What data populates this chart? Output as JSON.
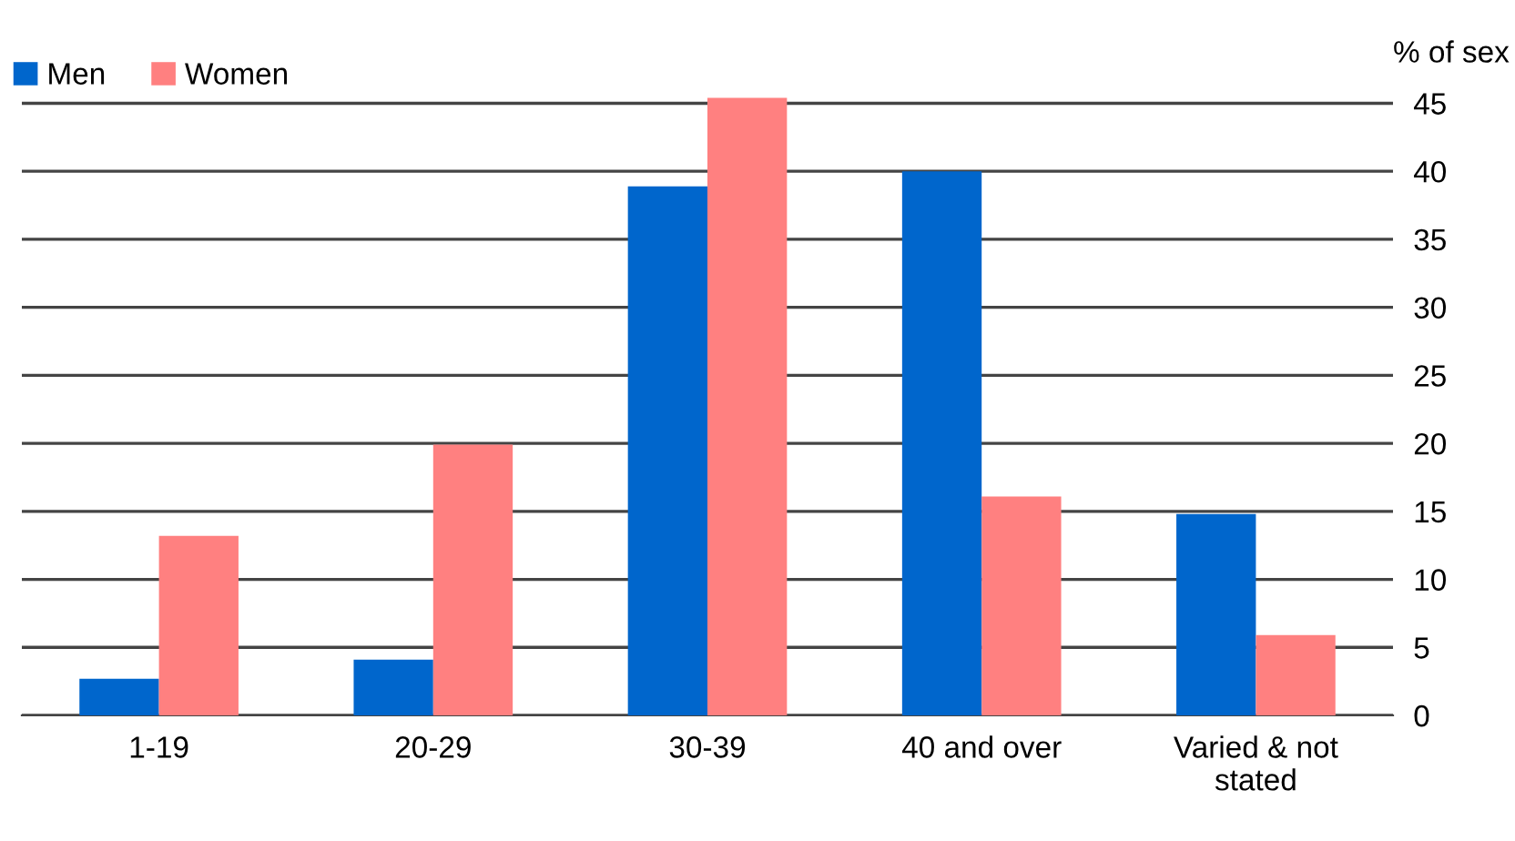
{
  "chart_data": {
    "type": "bar",
    "ylabel": "% of sex",
    "categories": [
      "1-19",
      "20-29",
      "30-39",
      "40 and over",
      "Varied & not\nstated"
    ],
    "series": [
      {
        "name": "Men",
        "color": "#0066cc",
        "values": [
          2.7,
          4.1,
          38.9,
          40.0,
          14.8
        ]
      },
      {
        "name": "Women",
        "color": "#ff8080",
        "values": [
          13.2,
          19.9,
          45.4,
          16.1,
          5.9
        ]
      }
    ],
    "ylim": [
      0,
      45.5
    ],
    "yticks": [
      0,
      5,
      10,
      15,
      20,
      25,
      30,
      35,
      40,
      45
    ],
    "grid": "y",
    "legend": "top left"
  }
}
